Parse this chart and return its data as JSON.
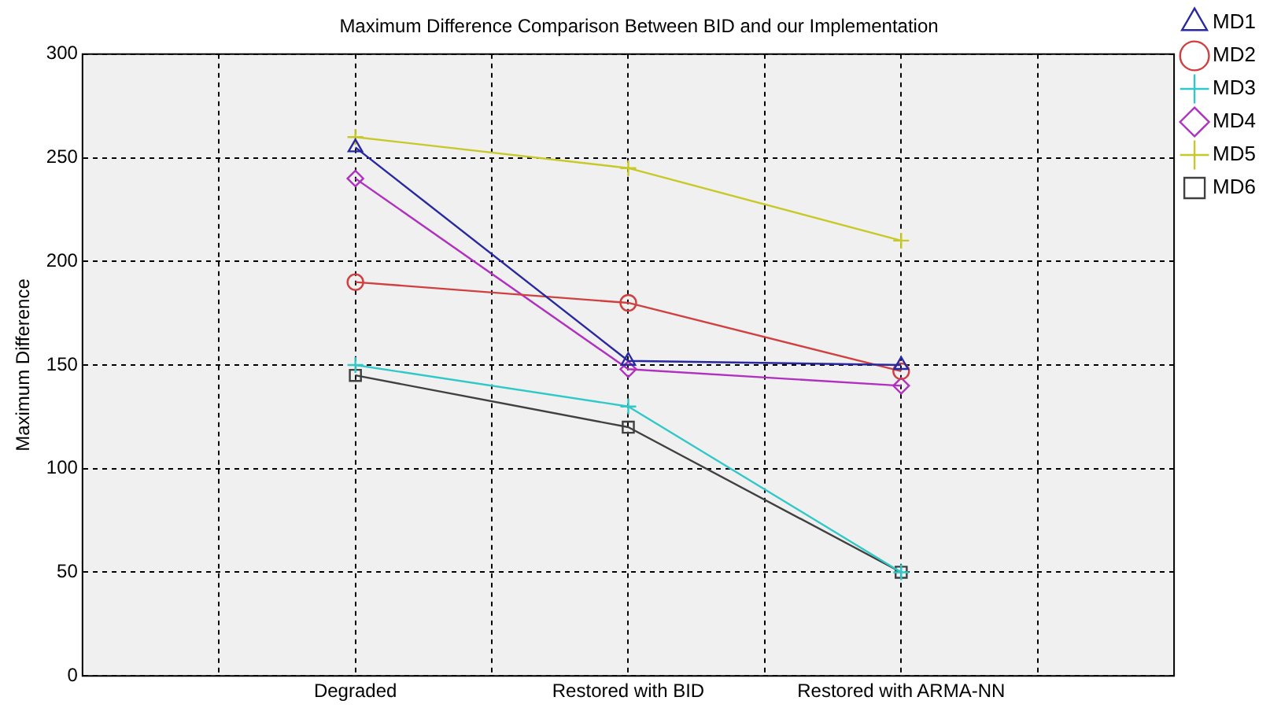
{
  "chart_data": {
    "type": "line",
    "title": "Maximum Difference Comparison Between BID and our Implementation",
    "ylabel": "Maximum Difference",
    "categories": [
      "Degraded",
      "Restored with BID",
      "Restored with ARMA-NN"
    ],
    "ylim": [
      0,
      300
    ],
    "yticks": [
      0,
      50,
      100,
      150,
      200,
      250,
      300
    ],
    "grid": true,
    "legend": "top right",
    "line_style": "solid",
    "series": [
      {
        "name": "MD1",
        "color": "#2828a0",
        "marker": "triangle",
        "values": [
          255,
          152,
          150
        ]
      },
      {
        "name": "MD2",
        "color": "#d04040",
        "marker": "circle",
        "values": [
          190,
          180,
          147
        ]
      },
      {
        "name": "MD3",
        "color": "#30c8c8",
        "marker": "cross",
        "values": [
          150,
          130,
          50
        ]
      },
      {
        "name": "MD4",
        "color": "#b030c0",
        "marker": "diamond",
        "values": [
          240,
          148,
          140
        ]
      },
      {
        "name": "MD5",
        "color": "#c8c828",
        "marker": "cross",
        "values": [
          260,
          245,
          210
        ]
      },
      {
        "name": "MD6",
        "color": "#404040",
        "marker": "square",
        "values": [
          145,
          120,
          50
        ]
      }
    ]
  }
}
